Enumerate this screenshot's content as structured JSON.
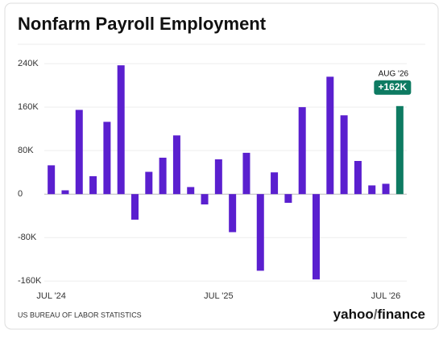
{
  "chart_data": {
    "type": "bar",
    "title": "Nonfarm Payroll Employment",
    "categories": [
      "JUL '24",
      null,
      null,
      null,
      null,
      null,
      null,
      null,
      null,
      null,
      null,
      null,
      "JUL '25",
      null,
      null,
      null,
      null,
      null,
      null,
      null,
      null,
      null,
      null,
      null,
      "JUL '26",
      null
    ],
    "values": [
      53,
      7,
      155,
      33,
      133,
      237,
      -47,
      41,
      67,
      108,
      13,
      -19,
      64,
      -70,
      76,
      -141,
      40,
      -16,
      160,
      -157,
      216,
      145,
      61,
      16,
      19,
      162
    ],
    "color": "#5a1fcf",
    "highlight_color": "#0e7b62",
    "highlight_index": 25,
    "annotation": {
      "label": "AUG '26",
      "value_label": "+162K"
    },
    "ylim": [
      -170,
      255
    ],
    "yticks": [
      {
        "value": -160,
        "label": "-160K"
      },
      {
        "value": -80,
        "label": "-80K"
      },
      0,
      {
        "value": 80,
        "label": "80K"
      },
      {
        "value": 160,
        "label": "160K"
      },
      {
        "value": 240,
        "label": "240K"
      }
    ],
    "grid": true,
    "source": "US BUREAU OF LABOR STATISTICS",
    "brand": {
      "name": "yahoo",
      "suffix": "finance"
    }
  }
}
